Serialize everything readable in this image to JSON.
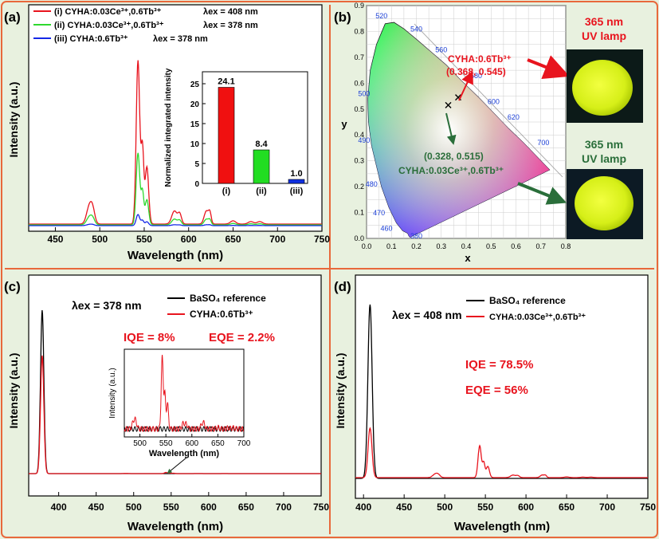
{
  "panels": {
    "a": {
      "letter": "(a)",
      "legend": [
        {
          "text": "(i) CYHA:0.03Ce³⁺,0.6Tb³⁺",
          "ex": "λex = 408 nm",
          "color": "#e8141e"
        },
        {
          "text": "(ii) CYHA:0.03Ce³⁺,0.6Tb³⁺",
          "ex": "λex = 378 nm",
          "color": "#2ed82e"
        },
        {
          "text": "(iii) CYHA:0.6Tb³⁺",
          "ex": "λex = 378 nm",
          "color": "#1428e6"
        }
      ],
      "xlabel": "Wavelength (nm)",
      "ylabel": "Intensity (a.u.)",
      "xticks": [
        "450",
        "500",
        "550",
        "600",
        "650",
        "700",
        "750"
      ],
      "inset": {
        "ylabel": "Normalized integrated intensity",
        "categories": [
          "(i)",
          "(ii)",
          "(iii)"
        ],
        "values": [
          24.1,
          8.4,
          1.0
        ],
        "value_labels": [
          "24.1",
          "8.4",
          "1.0"
        ],
        "yticks": [
          "0",
          "5",
          "10",
          "15",
          "20",
          "25"
        ],
        "colors": [
          "#f01010",
          "#22dd22",
          "#1030e0"
        ]
      }
    },
    "b": {
      "letter": "(b)",
      "xlabel": "x",
      "ylabel": "y",
      "xticks": [
        "0.0",
        "0.1",
        "0.2",
        "0.3",
        "0.4",
        "0.5",
        "0.6",
        "0.7",
        "0.8"
      ],
      "yticks": [
        "0.0",
        "0.1",
        "0.2",
        "0.3",
        "0.4",
        "0.5",
        "0.6",
        "0.7",
        "0.8",
        "0.9"
      ],
      "locus_labels": [
        "520",
        "540",
        "560",
        "580",
        "600",
        "620",
        "700",
        "500",
        "490",
        "480",
        "470",
        "460",
        "380"
      ],
      "point1": {
        "name": "CYHA:0.6Tb³⁺",
        "coords": "(0.368, 0.545)",
        "x": 0.368,
        "y": 0.545
      },
      "point2": {
        "name": "CYHA:0.03Ce³⁺,0.6Tb³⁺",
        "coords": "(0.328, 0.515)",
        "x": 0.328,
        "y": 0.515
      },
      "lamp_top": "365 nm UV lamp",
      "lamp_bottom": "365 nm UV lamp",
      "lamp_top_lines": [
        "365 nm",
        "UV lamp"
      ],
      "lamp_bottom_lines": [
        "365 nm",
        "UV lamp"
      ]
    },
    "c": {
      "letter": "(c)",
      "ex": "λex = 378 nm",
      "legend": [
        {
          "text": "BaSO₄ reference",
          "color": "#000000"
        },
        {
          "text": "CYHA:0.6Tb³⁺",
          "color": "#e8141e"
        }
      ],
      "iqe": "IQE = 8%",
      "eqe": "EQE = 2.2%",
      "xlabel": "Wavelength (nm)",
      "ylabel": "Intensity (a.u.)",
      "xticks": [
        "400",
        "450",
        "500",
        "550",
        "600",
        "650",
        "700",
        "750"
      ],
      "inset": {
        "xlabel": "Wavelength (nm)",
        "ylabel": "Intensity (a.u.)",
        "xticks": [
          "500",
          "550",
          "600",
          "650",
          "700"
        ]
      }
    },
    "d": {
      "letter": "(d)",
      "ex": "λex = 408 nm",
      "legend": [
        {
          "text": "BaSO₄ reference",
          "color": "#000000"
        },
        {
          "text": "CYHA:0.03Ce³⁺,0.6Tb³⁺",
          "color": "#e8141e"
        }
      ],
      "iqe": "IQE = 78.5%",
      "eqe": "EQE = 56%",
      "xlabel": "Wavelength (nm)",
      "ylabel": "Intensity (a.u.)",
      "xticks": [
        "400",
        "450",
        "500",
        "550",
        "600",
        "650",
        "700",
        "750"
      ]
    }
  },
  "chart_data": [
    {
      "type": "line",
      "panel": "a",
      "xlim": [
        420,
        750
      ],
      "series": [
        {
          "name": "(i)",
          "color": "#e8141e"
        },
        {
          "name": "(ii)",
          "color": "#2ed82e"
        },
        {
          "name": "(iii)",
          "color": "#1428e6"
        }
      ]
    },
    {
      "type": "bar",
      "panel": "a-inset",
      "categories": [
        "(i)",
        "(ii)",
        "(iii)"
      ],
      "values": [
        24.1,
        8.4,
        1.0
      ],
      "ylim": [
        0,
        28
      ]
    },
    {
      "type": "scatter",
      "panel": "b",
      "xlim": [
        0,
        0.8
      ],
      "ylim": [
        0,
        0.9
      ],
      "points": [
        {
          "x": 0.368,
          "y": 0.545
        },
        {
          "x": 0.328,
          "y": 0.515
        }
      ]
    },
    {
      "type": "line",
      "panel": "c",
      "xlim": [
        360,
        750
      ],
      "series": [
        {
          "name": "BaSO₄ reference",
          "peak_nm": 378
        },
        {
          "name": "CYHA:0.6Tb³⁺",
          "peak_nm": 378
        }
      ]
    },
    {
      "type": "line",
      "panel": "d",
      "xlim": [
        390,
        750
      ],
      "series": [
        {
          "name": "BaSO₄ reference",
          "peak_nm": 408
        },
        {
          "name": "CYHA:0.03Ce³⁺,0.6Tb³⁺",
          "peak_nm": 408
        }
      ]
    }
  ]
}
